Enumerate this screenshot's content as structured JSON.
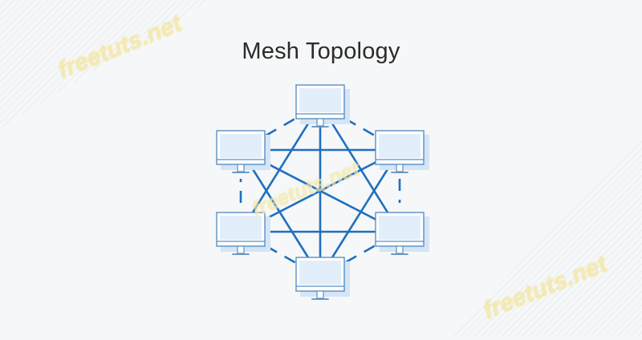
{
  "title": "Mesh Topology",
  "watermarks": [
    "freetuts.net",
    "freetuts.net",
    "freetuts.net"
  ],
  "colors": {
    "background": "#f6f7f8",
    "link": "#1f6fc0",
    "monitor_outline": "#5b8fc4",
    "monitor_screen": "#e3eefb",
    "monitor_shadow": "#d4e5f5",
    "watermark": "#f3e8a6"
  },
  "nodes": [
    {
      "name": "top",
      "icon": "monitor-icon"
    },
    {
      "name": "upper-right",
      "icon": "monitor-icon"
    },
    {
      "name": "lower-right",
      "icon": "monitor-icon"
    },
    {
      "name": "bottom",
      "icon": "monitor-icon"
    },
    {
      "name": "lower-left",
      "icon": "monitor-icon"
    },
    {
      "name": "upper-left",
      "icon": "monitor-icon"
    }
  ],
  "links": [
    {
      "from": 0,
      "to": 1,
      "style": "dashed"
    },
    {
      "from": 1,
      "to": 2,
      "style": "dashed"
    },
    {
      "from": 2,
      "to": 3,
      "style": "dashed"
    },
    {
      "from": 3,
      "to": 4,
      "style": "dashed"
    },
    {
      "from": 4,
      "to": 5,
      "style": "dashed"
    },
    {
      "from": 5,
      "to": 0,
      "style": "dashed"
    },
    {
      "from": 0,
      "to": 3,
      "style": "solid"
    },
    {
      "from": 1,
      "to": 4,
      "style": "solid"
    },
    {
      "from": 2,
      "to": 5,
      "style": "solid"
    },
    {
      "from": 0,
      "to": 2,
      "style": "solid"
    },
    {
      "from": 0,
      "to": 4,
      "style": "solid"
    },
    {
      "from": 1,
      "to": 3,
      "style": "solid"
    },
    {
      "from": 1,
      "to": 5,
      "style": "solid"
    },
    {
      "from": 2,
      "to": 4,
      "style": "solid"
    },
    {
      "from": 3,
      "to": 5,
      "style": "solid"
    }
  ]
}
